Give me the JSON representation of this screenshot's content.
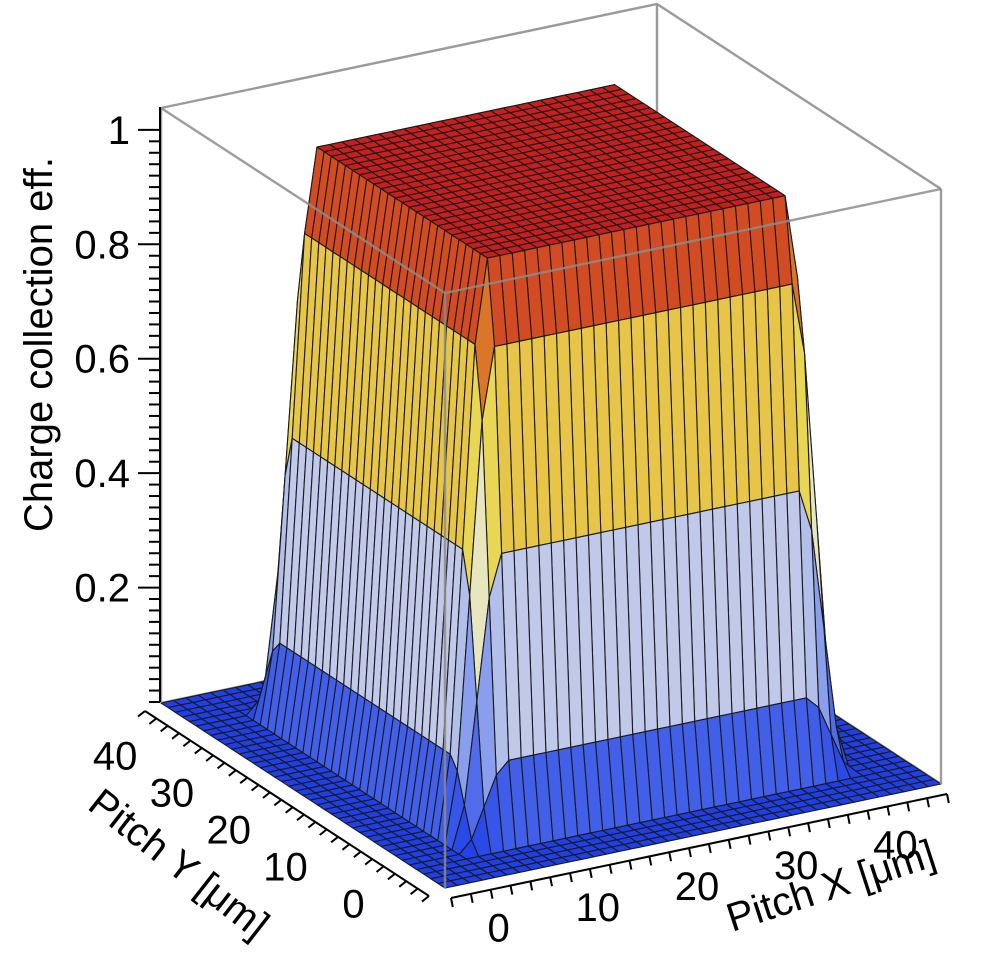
{
  "chart_data": {
    "type": "surface3d",
    "title": "",
    "xlabel": "Pitch X [μm]",
    "ylabel": "Pitch Y [μm]",
    "zlabel": "Charge collection eff.",
    "xlim": [
      -5,
      45
    ],
    "ylim": [
      -5,
      45
    ],
    "zlim": [
      0,
      1.04
    ],
    "x_ticks": [
      "0",
      "10",
      "20",
      "30",
      "40"
    ],
    "y_ticks": [
      "0",
      "10",
      "20",
      "30",
      "40"
    ],
    "z_ticks": [
      "0.2",
      "0.4",
      "0.6",
      "0.8",
      "1"
    ],
    "x_tick_values": [
      0,
      10,
      20,
      30,
      40
    ],
    "y_tick_values": [
      0,
      10,
      20,
      30,
      40
    ],
    "z_tick_values": [
      0.2,
      0.4,
      0.6,
      0.8,
      1.0
    ],
    "plateau_value": 1.0,
    "floor_value": 0.0,
    "plateau_range_x": [
      5,
      35
    ],
    "plateau_range_y": [
      5,
      35
    ],
    "edge_width": 5,
    "colormap": [
      "#1f3fe8",
      "#7f96ee",
      "#e8e8e8",
      "#e9e05a",
      "#e39a2c",
      "#c81e1e"
    ]
  }
}
